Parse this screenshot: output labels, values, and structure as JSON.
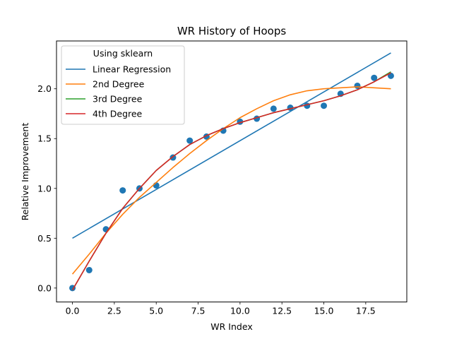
{
  "chart_data": {
    "type": "scatter",
    "title": "WR History of Hoops",
    "xlabel": "WR Index",
    "ylabel": "Relative Improvement",
    "xlim": [
      -0.95,
      19.95
    ],
    "ylim": [
      -0.14,
      2.48
    ],
    "xticks": [
      0.0,
      2.5,
      5.0,
      7.5,
      10.0,
      12.5,
      15.0,
      17.5
    ],
    "xtick_labels": [
      "0.0",
      "2.5",
      "5.0",
      "7.5",
      "10.0",
      "12.5",
      "15.0",
      "17.5"
    ],
    "yticks": [
      0.0,
      0.5,
      1.0,
      1.5,
      2.0
    ],
    "ytick_labels": [
      "0.0",
      "0.5",
      "1.0",
      "1.5",
      "2.0"
    ],
    "grid": false,
    "legend_title": "Using sklearn",
    "legend_position": "upper-left",
    "points": {
      "color": "#1f77b4",
      "x": [
        0,
        1,
        2,
        3,
        4,
        5,
        6,
        7,
        8,
        9,
        10,
        11,
        12,
        13,
        14,
        15,
        16,
        17,
        18,
        19
      ],
      "y": [
        0.0,
        0.18,
        0.59,
        0.98,
        1.0,
        1.03,
        1.31,
        1.48,
        1.52,
        1.58,
        1.67,
        1.7,
        1.8,
        1.81,
        1.83,
        1.83,
        1.95,
        2.03,
        2.11,
        2.13
      ]
    },
    "series": [
      {
        "name": "Linear Regression",
        "color": "#1f77b4",
        "x": [
          0,
          19
        ],
        "y": [
          0.5,
          2.36
        ]
      },
      {
        "name": "2nd Degree",
        "color": "#ff7f0e",
        "x": [
          0,
          1,
          2,
          3,
          4,
          5,
          6,
          7,
          8,
          9,
          10,
          11,
          12,
          13,
          14,
          15,
          16,
          17,
          18,
          19
        ],
        "y": [
          0.14,
          0.34,
          0.55,
          0.74,
          0.91,
          1.06,
          1.21,
          1.35,
          1.48,
          1.6,
          1.71,
          1.8,
          1.88,
          1.94,
          1.98,
          2.0,
          2.01,
          2.02,
          2.01,
          2.0
        ]
      },
      {
        "name": "3rd Degree",
        "color": "#2ca02c",
        "x": [
          0,
          1,
          2,
          3,
          4,
          5,
          6,
          7,
          8,
          9,
          10,
          11,
          12,
          13,
          14,
          15,
          16,
          17,
          18,
          19
        ],
        "y": [
          -0.02,
          0.27,
          0.55,
          0.8,
          1.0,
          1.18,
          1.32,
          1.44,
          1.53,
          1.6,
          1.66,
          1.71,
          1.76,
          1.8,
          1.84,
          1.88,
          1.93,
          1.99,
          2.07,
          2.17
        ]
      },
      {
        "name": "4th Degree",
        "color": "#d62728",
        "x": [
          0,
          1,
          2,
          3,
          4,
          5,
          6,
          7,
          8,
          9,
          10,
          11,
          12,
          13,
          14,
          15,
          16,
          17,
          18,
          19
        ],
        "y": [
          -0.02,
          0.27,
          0.55,
          0.8,
          1.0,
          1.18,
          1.32,
          1.44,
          1.53,
          1.6,
          1.66,
          1.71,
          1.76,
          1.8,
          1.84,
          1.88,
          1.93,
          1.99,
          2.07,
          2.16
        ]
      }
    ]
  }
}
